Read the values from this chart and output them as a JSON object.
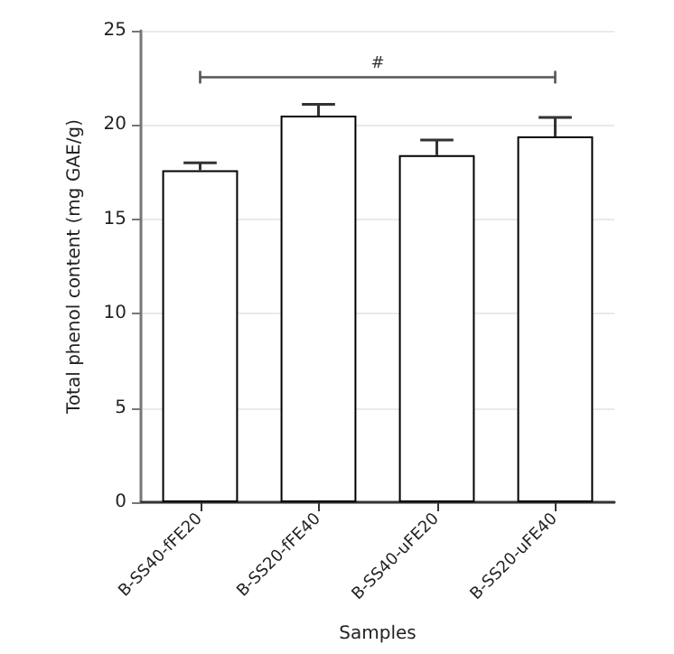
{
  "chart_data": {
    "type": "bar",
    "categories": [
      "B-SS40-fFE20",
      "B-SS20-fFE40",
      "B-SS40-uFE20",
      "B-SS20-uFE40"
    ],
    "values": [
      17.6,
      20.5,
      18.4,
      19.4
    ],
    "errors": [
      [
        17.6,
        18.0
      ],
      [
        20.5,
        21.1
      ],
      [
        18.4,
        19.2
      ],
      [
        19.4,
        20.4
      ]
    ],
    "color": "#ffffff",
    "xlabel": "Samples",
    "ylabel": "Total phenol content (mg GAE/g)",
    "ylim": [
      0,
      25
    ],
    "yticks": [
      0,
      5,
      10,
      15,
      20,
      25
    ],
    "grid": "y",
    "annotations": [
      "#"
    ]
  }
}
